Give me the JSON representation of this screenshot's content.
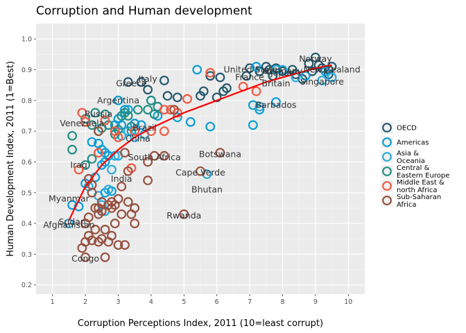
{
  "chart_data": {
    "type": "scatter",
    "title": "Corruption and Human development",
    "xlabel": "Corruption Perceptions Index, 2011 (10=least corrupt)",
    "ylabel": "Human Development Index, 2011 (1=Best)",
    "xlim": [
      0.5,
      10.5
    ],
    "ylim": [
      0.17,
      1.05
    ],
    "xticks": [
      "1",
      "2",
      "3",
      "4",
      "5",
      "6",
      "7",
      "8",
      "9",
      "10"
    ],
    "yticks": [
      "0.2",
      "0.3",
      "0.4",
      "0.5",
      "0.6",
      "0.7",
      "0.8",
      "0.9",
      "1.0"
    ],
    "grid": true,
    "legend_position": "right",
    "trend_line": {
      "color": "#ff0000",
      "points": [
        [
          1.5,
          0.41
        ],
        [
          2,
          0.52
        ],
        [
          2.5,
          0.59
        ],
        [
          3,
          0.64
        ],
        [
          3.5,
          0.68
        ],
        [
          4,
          0.71
        ],
        [
          4.5,
          0.735
        ],
        [
          5,
          0.76
        ],
        [
          5.5,
          0.78
        ],
        [
          6,
          0.8
        ],
        [
          6.5,
          0.82
        ],
        [
          7,
          0.84
        ],
        [
          7.5,
          0.86
        ],
        [
          8,
          0.875
        ],
        [
          8.5,
          0.89
        ],
        [
          9,
          0.905
        ],
        [
          9.5,
          0.915
        ]
      ]
    },
    "series": [
      {
        "name": "OECD",
        "color": "#24576d",
        "points": [
          [
            3.3,
            0.86
          ],
          [
            3.7,
            0.86
          ],
          [
            4.4,
            0.865
          ],
          [
            3.9,
            0.835
          ],
          [
            4.5,
            0.815
          ],
          [
            4.8,
            0.81
          ],
          [
            5.5,
            0.815
          ],
          [
            5.6,
            0.83
          ],
          [
            6.0,
            0.81
          ],
          [
            5.8,
            0.88
          ],
          [
            6.1,
            0.875
          ],
          [
            6.3,
            0.84
          ],
          [
            6.2,
            0.83
          ],
          [
            6.9,
            0.88
          ],
          [
            7.0,
            0.905
          ],
          [
            7.3,
            0.895
          ],
          [
            7.5,
            0.91
          ],
          [
            7.6,
            0.9
          ],
          [
            7.8,
            0.905
          ],
          [
            7.7,
            0.88
          ],
          [
            8.0,
            0.895
          ],
          [
            8.3,
            0.9
          ],
          [
            8.4,
            0.885
          ],
          [
            8.6,
            0.87
          ],
          [
            8.8,
            0.92
          ],
          [
            8.9,
            0.895
          ],
          [
            9.0,
            0.94
          ],
          [
            9.1,
            0.915
          ],
          [
            9.2,
            0.905
          ],
          [
            9.4,
            0.885
          ],
          [
            9.4,
            0.9
          ],
          [
            9.5,
            0.91
          ]
        ]
      },
      {
        "name": "Americas",
        "color": "#099dd7",
        "points": [
          [
            1.6,
            0.46
          ],
          [
            1.8,
            0.455
          ],
          [
            2.0,
            0.53
          ],
          [
            2.2,
            0.665
          ],
          [
            2.4,
            0.66
          ],
          [
            2.5,
            0.59
          ],
          [
            2.5,
            0.64
          ],
          [
            2.6,
            0.63
          ],
          [
            2.6,
            0.5
          ],
          [
            2.7,
            0.62
          ],
          [
            2.8,
            0.505
          ],
          [
            2.9,
            0.72
          ],
          [
            3.0,
            0.8
          ],
          [
            3.0,
            0.74
          ],
          [
            3.1,
            0.72
          ],
          [
            3.2,
            0.77
          ],
          [
            3.3,
            0.77
          ],
          [
            3.4,
            0.7
          ],
          [
            3.5,
            0.725
          ],
          [
            3.7,
            0.72
          ],
          [
            4.2,
            0.75
          ],
          [
            4.8,
            0.745
          ],
          [
            5.2,
            0.73
          ],
          [
            5.4,
            0.9
          ],
          [
            5.8,
            0.715
          ],
          [
            7.1,
            0.785
          ],
          [
            7.1,
            0.72
          ],
          [
            7.2,
            0.91
          ],
          [
            7.3,
            0.77
          ],
          [
            7.8,
            0.795
          ],
          [
            8.7,
            0.88
          ],
          [
            9.3,
            0.895
          ],
          [
            2.6,
            0.6
          ],
          [
            2.3,
            0.55
          ]
        ]
      },
      {
        "name": "Asia & Oceania",
        "color": "#28aadc",
        "points": [
          [
            1.5,
            0.4
          ],
          [
            2.1,
            0.52
          ],
          [
            2.4,
            0.49
          ],
          [
            2.5,
            0.46
          ],
          [
            2.6,
            0.44
          ],
          [
            2.7,
            0.51
          ],
          [
            2.8,
            0.575
          ],
          [
            2.9,
            0.62
          ],
          [
            3.0,
            0.62
          ],
          [
            3.1,
            0.685
          ],
          [
            3.3,
            0.7
          ],
          [
            3.5,
            0.68
          ],
          [
            3.8,
            0.69
          ],
          [
            4.0,
            0.8
          ],
          [
            5.7,
            0.56
          ],
          [
            7.3,
            0.78
          ],
          [
            7.8,
            0.9
          ],
          [
            8.0,
            0.9
          ],
          [
            8.4,
            0.875
          ],
          [
            9.2,
            0.865
          ],
          [
            9.5,
            0.875
          ]
        ]
      },
      {
        "name": "Central & Eastern Europe",
        "color": "#248e84",
        "points": [
          [
            1.6,
            0.685
          ],
          [
            1.6,
            0.64
          ],
          [
            2.0,
            0.74
          ],
          [
            2.0,
            0.59
          ],
          [
            2.2,
            0.72
          ],
          [
            2.3,
            0.76
          ],
          [
            2.4,
            0.7
          ],
          [
            2.5,
            0.71
          ],
          [
            2.6,
            0.755
          ],
          [
            2.7,
            0.72
          ],
          [
            2.9,
            0.69
          ],
          [
            3.0,
            0.705
          ],
          [
            3.1,
            0.75
          ],
          [
            3.2,
            0.76
          ],
          [
            3.3,
            0.75
          ],
          [
            3.6,
            0.77
          ],
          [
            3.9,
            0.77
          ],
          [
            4.0,
            0.8
          ],
          [
            4.1,
            0.755
          ],
          [
            4.2,
            0.78
          ],
          [
            2.2,
            0.61
          ],
          [
            3.4,
            0.715
          ]
        ]
      },
      {
        "name": "Middle East & north Africa",
        "color": "#f2583f",
        "points": [
          [
            1.8,
            0.575
          ],
          [
            1.9,
            0.76
          ],
          [
            2.0,
            0.73
          ],
          [
            2.4,
            0.63
          ],
          [
            2.6,
            0.735
          ],
          [
            2.9,
            0.7
          ],
          [
            3.0,
            0.68
          ],
          [
            3.4,
            0.58
          ],
          [
            3.5,
            0.7
          ],
          [
            4.0,
            0.7
          ],
          [
            4.4,
            0.77
          ],
          [
            4.4,
            0.7
          ],
          [
            4.6,
            0.77
          ],
          [
            4.8,
            0.76
          ],
          [
            5.1,
            0.805
          ],
          [
            5.8,
            0.89
          ],
          [
            6.8,
            0.845
          ],
          [
            7.2,
            0.83
          ]
        ]
      },
      {
        "name": "Sub-Saharan Africa",
        "color": "#96503f",
        "points": [
          [
            1.9,
            0.32
          ],
          [
            2.0,
            0.34
          ],
          [
            2.0,
            0.4
          ],
          [
            2.0,
            0.29
          ],
          [
            2.1,
            0.36
          ],
          [
            2.1,
            0.42
          ],
          [
            2.2,
            0.345
          ],
          [
            2.2,
            0.5
          ],
          [
            2.3,
            0.45
          ],
          [
            2.3,
            0.38
          ],
          [
            2.4,
            0.45
          ],
          [
            2.4,
            0.43
          ],
          [
            2.4,
            0.34
          ],
          [
            2.5,
            0.47
          ],
          [
            2.5,
            0.44
          ],
          [
            2.5,
            0.35
          ],
          [
            2.6,
            0.29
          ],
          [
            2.6,
            0.38
          ],
          [
            2.7,
            0.46
          ],
          [
            2.7,
            0.34
          ],
          [
            2.8,
            0.36
          ],
          [
            2.8,
            0.45
          ],
          [
            2.9,
            0.46
          ],
          [
            2.9,
            0.4
          ],
          [
            3.0,
            0.48
          ],
          [
            3.0,
            0.33
          ],
          [
            3.1,
            0.52
          ],
          [
            3.1,
            0.43
          ],
          [
            3.2,
            0.33
          ],
          [
            3.3,
            0.47
          ],
          [
            3.4,
            0.43
          ],
          [
            3.5,
            0.45
          ],
          [
            3.5,
            0.4
          ],
          [
            3.9,
            0.54
          ],
          [
            4.1,
            0.62
          ],
          [
            4.4,
            0.62
          ],
          [
            4.7,
            0.77
          ],
          [
            5.0,
            0.43
          ],
          [
            5.5,
            0.57
          ],
          [
            6.1,
            0.63
          ],
          [
            2.1,
            0.545
          ],
          [
            2.8,
            0.47
          ],
          [
            2.2,
            0.525
          ],
          [
            3.3,
            0.57
          ],
          [
            3.2,
            0.63
          ],
          [
            3.9,
            0.6
          ],
          [
            2.4,
            0.7
          ]
        ]
      }
    ],
    "annotations": [
      {
        "text": "Congo",
        "x": 2.0,
        "y": 0.285,
        "anchor": "middle"
      },
      {
        "text": "Sudan",
        "x": 1.6,
        "y": 0.405,
        "anchor": "middle"
      },
      {
        "text": "Afghanistan",
        "x": 1.5,
        "y": 0.395,
        "anchor": "middle"
      },
      {
        "text": "Myanmar",
        "x": 1.5,
        "y": 0.48,
        "anchor": "middle"
      },
      {
        "text": "Iraq",
        "x": 1.8,
        "y": 0.59,
        "anchor": "middle"
      },
      {
        "text": "India",
        "x": 3.1,
        "y": 0.545,
        "anchor": "middle"
      },
      {
        "text": "Venezuela",
        "x": 1.9,
        "y": 0.725,
        "anchor": "middle"
      },
      {
        "text": "Russia",
        "x": 2.4,
        "y": 0.755,
        "anchor": "middle"
      },
      {
        "text": "Argentina",
        "x": 3.0,
        "y": 0.8,
        "anchor": "middle"
      },
      {
        "text": "Brazil",
        "x": 3.8,
        "y": 0.71,
        "anchor": "middle"
      },
      {
        "text": "China",
        "x": 3.6,
        "y": 0.675,
        "anchor": "middle"
      },
      {
        "text": "South Africa",
        "x": 4.1,
        "y": 0.615,
        "anchor": "middle"
      },
      {
        "text": "Greece",
        "x": 3.4,
        "y": 0.855,
        "anchor": "middle"
      },
      {
        "text": "Italy",
        "x": 3.9,
        "y": 0.87,
        "anchor": "middle"
      },
      {
        "text": "Rwanda",
        "x": 5.0,
        "y": 0.425,
        "anchor": "middle"
      },
      {
        "text": "Cape Verde",
        "x": 5.5,
        "y": 0.565,
        "anchor": "middle"
      },
      {
        "text": "Bhutan",
        "x": 5.7,
        "y": 0.51,
        "anchor": "middle"
      },
      {
        "text": "Botswana",
        "x": 6.1,
        "y": 0.625,
        "anchor": "middle"
      },
      {
        "text": "Barbados",
        "x": 7.8,
        "y": 0.785,
        "anchor": "middle"
      },
      {
        "text": "France",
        "x": 7.0,
        "y": 0.875,
        "anchor": "middle"
      },
      {
        "text": "United States",
        "x": 7.1,
        "y": 0.9,
        "anchor": "middle"
      },
      {
        "text": "Germany",
        "x": 8.0,
        "y": 0.895,
        "anchor": "middle"
      },
      {
        "text": "Britain",
        "x": 7.8,
        "y": 0.855,
        "anchor": "middle"
      },
      {
        "text": "Japan",
        "x": 8.0,
        "y": 0.89,
        "anchor": "middle"
      },
      {
        "text": "Norway",
        "x": 9.0,
        "y": 0.935,
        "anchor": "middle"
      },
      {
        "text": "New Zealand",
        "x": 9.5,
        "y": 0.9,
        "anchor": "middle"
      },
      {
        "text": "Singapore",
        "x": 9.2,
        "y": 0.86,
        "anchor": "middle"
      }
    ]
  },
  "legend": {
    "items": [
      {
        "lines": [
          "OECD"
        ],
        "color": "#24576d"
      },
      {
        "lines": [
          "Americas"
        ],
        "color": "#099dd7"
      },
      {
        "lines": [
          "Asia &",
          "Oceania"
        ],
        "color": "#28aadc"
      },
      {
        "lines": [
          "Central &",
          "Eastern Europe"
        ],
        "color": "#248e84"
      },
      {
        "lines": [
          "Middle East &",
          "north Africa"
        ],
        "color": "#f2583f"
      },
      {
        "lines": [
          "Sub-Saharan",
          "Africa"
        ],
        "color": "#96503f"
      }
    ]
  },
  "colors": {
    "panel": "#ebebeb",
    "grid_major": "#ffffff",
    "trend": "#ff0000"
  }
}
